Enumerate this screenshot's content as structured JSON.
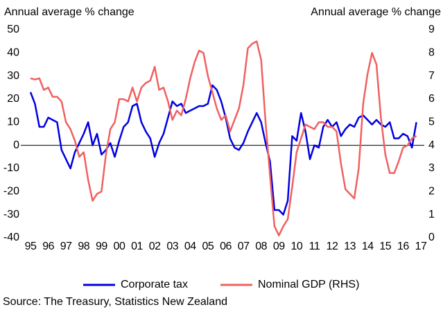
{
  "chart_data": {
    "type": "line",
    "y_label": "Annual average % change",
    "y2_label": "Annual average % change",
    "source": "Source: The Treasury, Statistics New Zealand",
    "categories": [
      "95",
      null,
      null,
      null,
      "96",
      null,
      null,
      null,
      "97",
      null,
      null,
      null,
      "98",
      null,
      null,
      null,
      "99",
      null,
      null,
      null,
      "00",
      null,
      null,
      null,
      "01",
      null,
      null,
      null,
      "02",
      null,
      null,
      null,
      "03",
      null,
      null,
      null,
      "04",
      null,
      null,
      null,
      "05",
      null,
      null,
      null,
      "06",
      null,
      null,
      null,
      "07",
      null,
      null,
      null,
      "08",
      null,
      null,
      null,
      "09",
      null,
      null,
      null,
      "10",
      null,
      null,
      null,
      "11",
      null,
      null,
      null,
      "12",
      null,
      null,
      null,
      "13",
      null,
      null,
      null,
      "14",
      null,
      null,
      null,
      "15",
      null,
      null,
      null,
      "16",
      null,
      null,
      null,
      "17"
    ],
    "series": [
      {
        "name": "Corporate tax",
        "color": "#0000e0",
        "axis": "y",
        "values": [
          23,
          18,
          8,
          8,
          12,
          11,
          10,
          -2,
          -6,
          -10,
          -3,
          1,
          5,
          10,
          0,
          5,
          -4,
          -2,
          1,
          -5,
          2,
          8,
          10,
          17,
          18,
          10,
          6,
          3,
          -5,
          1,
          5,
          12,
          19,
          17,
          18,
          14,
          15,
          16,
          17,
          17,
          18,
          26,
          24,
          19,
          12,
          3,
          -1,
          -2,
          1,
          6,
          10,
          14,
          10,
          1,
          -7,
          -28,
          -28,
          -30,
          -24,
          4,
          2,
          14,
          6,
          -6,
          0,
          -1,
          8,
          11,
          8,
          10,
          4,
          7,
          9,
          8,
          12,
          13,
          11,
          9,
          11,
          9,
          8,
          10,
          3,
          3,
          5,
          4,
          -1,
          10,
          null
        ]
      },
      {
        "name": "Nominal GDP (RHS)",
        "color": "#f06060",
        "axis": "y2",
        "values": [
          6.9,
          6.85,
          6.9,
          6.4,
          6.5,
          6.1,
          6.1,
          5.9,
          5.0,
          4.7,
          4.2,
          3.5,
          3.7,
          2.5,
          1.6,
          1.9,
          2.0,
          3.6,
          4.7,
          5.0,
          6.0,
          6.0,
          5.9,
          6.5,
          5.9,
          6.5,
          6.7,
          6.8,
          7.4,
          6.4,
          6.5,
          5.9,
          5.1,
          5.5,
          5.3,
          6.0,
          6.9,
          7.6,
          8.1,
          8.0,
          7.0,
          6.3,
          5.6,
          5.1,
          5.3,
          4.6,
          5.1,
          5.6,
          6.6,
          8.2,
          8.4,
          8.5,
          7.7,
          5.0,
          2.7,
          0.5,
          0.1,
          0.5,
          0.8,
          2.2,
          3.7,
          4.3,
          4.9,
          4.8,
          4.7,
          5.0,
          5.0,
          4.8,
          4.8,
          4.6,
          3.2,
          2.1,
          1.9,
          1.7,
          3.0,
          5.8,
          7.1,
          8.0,
          7.5,
          5.2,
          3.6,
          2.8,
          2.8,
          3.3,
          3.9,
          4.0,
          4.3,
          4.4,
          null
        ]
      }
    ],
    "ylim": [
      -40,
      50
    ],
    "yticks": [
      -40,
      -30,
      -20,
      -10,
      0,
      10,
      20,
      30,
      40,
      50
    ],
    "y2lim": [
      0,
      9
    ],
    "y2ticks": [
      0,
      1,
      2,
      3,
      4,
      5,
      6,
      7,
      8,
      9
    ],
    "legend": "bottom"
  }
}
